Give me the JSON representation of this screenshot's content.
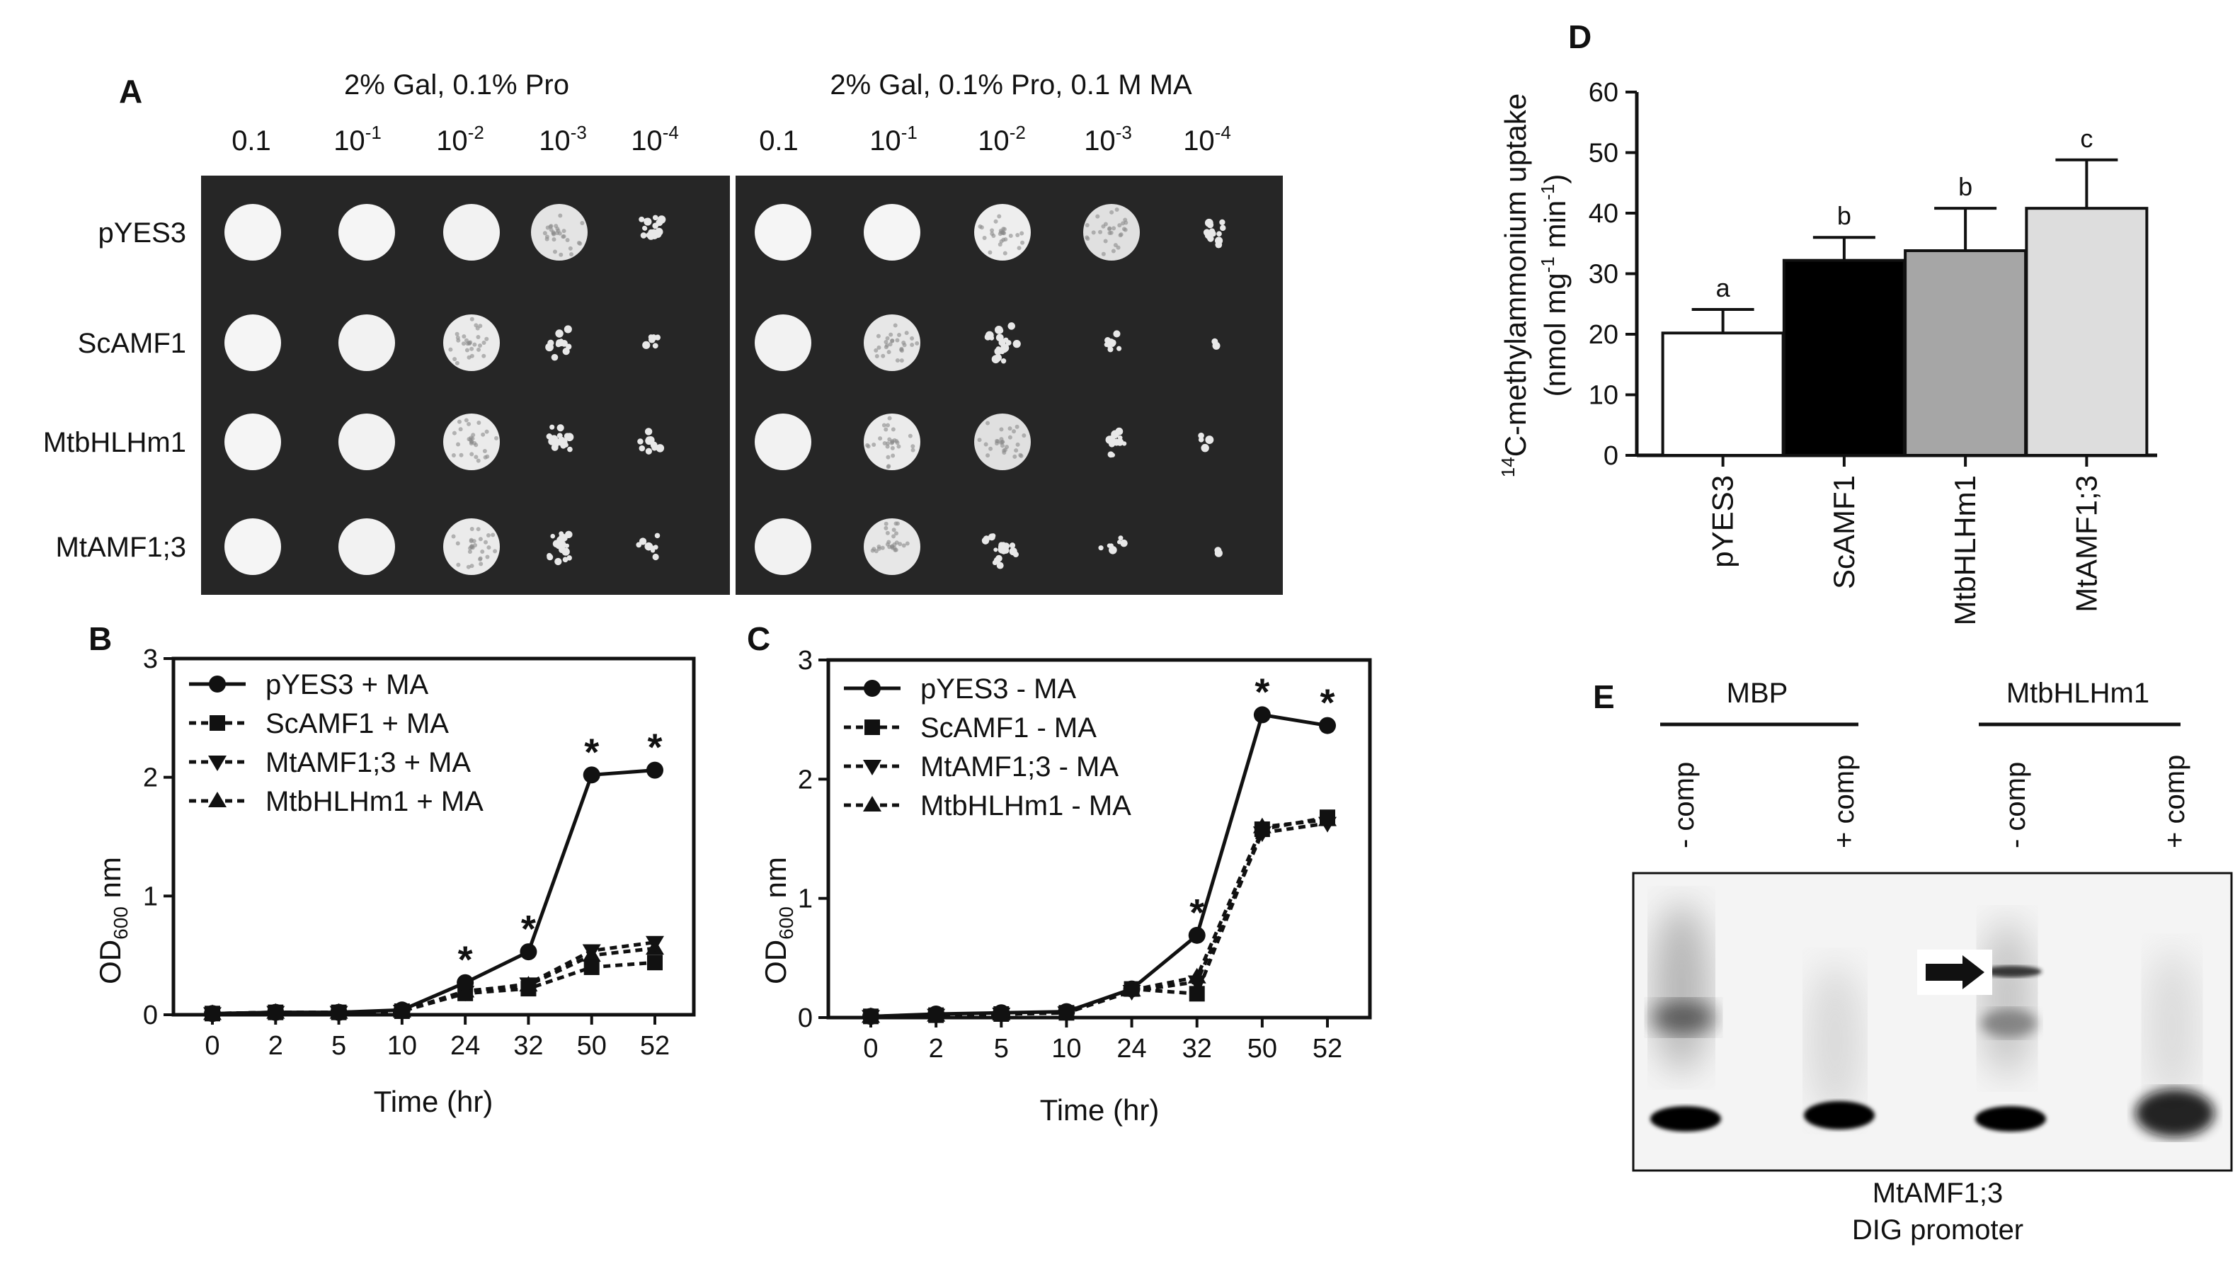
{
  "panelA": {
    "letter": "A",
    "condition_left": "2% Gal, 0.1% Pro",
    "condition_right": "2% Gal, 0.1% Pro, 0.1 M MA",
    "dilutions": [
      {
        "base": "0.1",
        "exp": ""
      },
      {
        "base": "10",
        "exp": "-1"
      },
      {
        "base": "10",
        "exp": "-2"
      },
      {
        "base": "10",
        "exp": "-3"
      },
      {
        "base": "10",
        "exp": "-4"
      }
    ],
    "strains": [
      "pYES3",
      "ScAMF1",
      "MtbHLHm1",
      "MtAMF1;3"
    ]
  },
  "panelB": {
    "letter": "B",
    "ylabel_main": "OD",
    "ylabel_sub": "600",
    "ylabel_tail": " nm",
    "xlabel": "Time (hr)",
    "star": "*"
  },
  "panelC": {
    "letter": "C",
    "ylabel_main": "OD",
    "ylabel_sub": "600",
    "ylabel_tail": " nm",
    "xlabel": "Time (hr)",
    "star": "*"
  },
  "panelD": {
    "letter": "D",
    "ylabel_line1_sup": "14",
    "ylabel_line1": "C-methylammonium  uptake",
    "ylabel_line2_a": "(nmol mg",
    "ylabel_line2_sup1": "-1",
    "ylabel_line2_b": " min",
    "ylabel_line2_sup2": "-1",
    "ylabel_line2_c": ")"
  },
  "panelE": {
    "letter": "E",
    "group_left": "MBP",
    "group_right": "MtbHLHm1",
    "lanes": [
      "- comp",
      "+ comp",
      "- comp",
      "+ comp"
    ],
    "caption_line1": "MtAMF1;3",
    "caption_line2": "DIG promoter"
  },
  "chart_data": [
    {
      "id": "B",
      "type": "line",
      "categories": [
        "0",
        "2",
        "5",
        "10",
        "24",
        "32",
        "50",
        "52"
      ],
      "ylim": [
        0,
        3
      ],
      "yticks": [
        "0",
        "1",
        "2",
        "3"
      ],
      "series": [
        {
          "name": "pYES3 + MA",
          "marker": "circle",
          "dash": false,
          "values": [
            0.01,
            0.02,
            0.02,
            0.04,
            0.27,
            0.53,
            2.02,
            2.06
          ]
        },
        {
          "name": "ScAMF1 + MA",
          "marker": "square",
          "dash": true,
          "values": [
            0.01,
            0.02,
            0.02,
            0.03,
            0.18,
            0.22,
            0.4,
            0.44
          ]
        },
        {
          "name": "MtAMF1;3 + MA",
          "marker": "tri-down",
          "dash": true,
          "values": [
            0.01,
            0.02,
            0.02,
            0.03,
            0.19,
            0.26,
            0.54,
            0.61
          ]
        },
        {
          "name": "MtbHLHm1 + MA",
          "marker": "tri-up",
          "dash": true,
          "values": [
            0.01,
            0.02,
            0.02,
            0.03,
            0.2,
            0.25,
            0.5,
            0.56
          ]
        }
      ],
      "significance": [
        4,
        5,
        6,
        7
      ],
      "xlabel": "Time (hr)"
    },
    {
      "id": "C",
      "type": "line",
      "categories": [
        "0",
        "2",
        "5",
        "10",
        "24",
        "32",
        "50",
        "52"
      ],
      "ylim": [
        0,
        3
      ],
      "yticks": [
        "0",
        "1",
        "2",
        "3"
      ],
      "series": [
        {
          "name": "pYES3 - MA",
          "marker": "circle",
          "dash": false,
          "values": [
            0.01,
            0.03,
            0.04,
            0.05,
            0.24,
            0.69,
            2.54,
            2.45
          ]
        },
        {
          "name": "ScAMF1 - MA",
          "marker": "square",
          "dash": true,
          "values": [
            0.01,
            0.02,
            0.03,
            0.04,
            0.24,
            0.2,
            1.58,
            1.68
          ]
        },
        {
          "name": "MtAMF1;3 - MA",
          "marker": "tri-down",
          "dash": true,
          "values": [
            0.01,
            0.02,
            0.03,
            0.04,
            0.22,
            0.3,
            1.55,
            1.63
          ]
        },
        {
          "name": "MtbHLHm1 - MA",
          "marker": "tri-up",
          "dash": true,
          "values": [
            0.01,
            0.02,
            0.03,
            0.04,
            0.23,
            0.34,
            1.6,
            1.66
          ]
        }
      ],
      "significance": [
        5,
        6,
        7
      ],
      "xlabel": "Time (hr)"
    },
    {
      "id": "D",
      "type": "bar",
      "categories": [
        "pYES3",
        "ScAMF1",
        "MtbHLHm1",
        "MtAMF1;3"
      ],
      "values": [
        20.2,
        32.2,
        33.8,
        40.8
      ],
      "errors": [
        3.9,
        3.8,
        7.0,
        8.0
      ],
      "letters": [
        "a",
        "b",
        "b",
        "c"
      ],
      "colors": [
        "#ffffff",
        "#000000",
        "#a6a6a6",
        "#dddddd"
      ],
      "ylim": [
        0,
        60
      ],
      "yticks": [
        "0",
        "10",
        "20",
        "30",
        "40",
        "50",
        "60"
      ]
    }
  ]
}
